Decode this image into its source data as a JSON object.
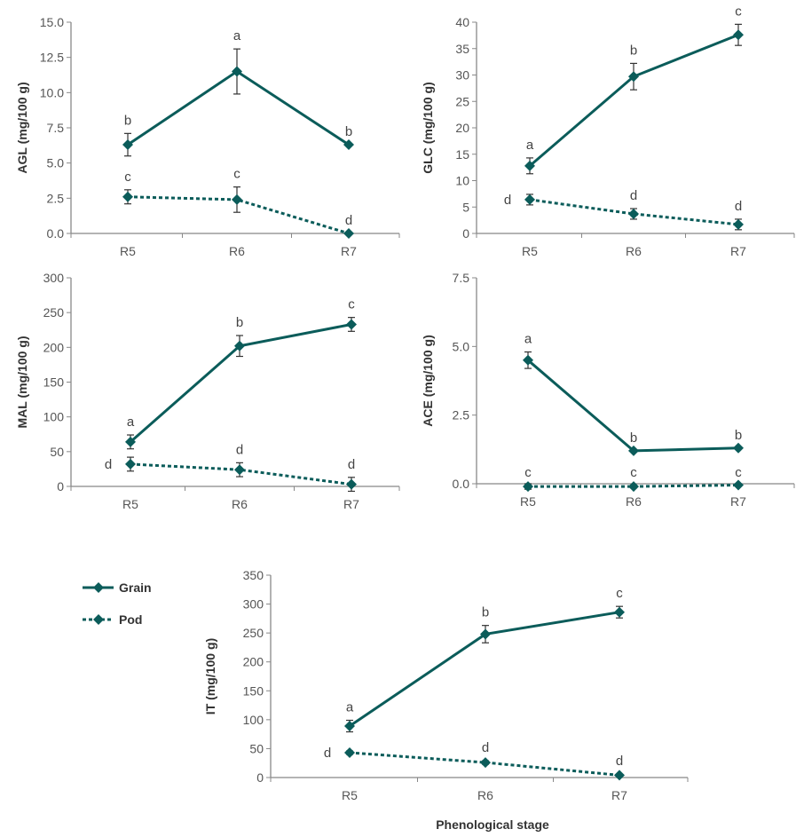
{
  "chart_data": [
    {
      "type": "line",
      "ylabel": "AGL (mg/100 g)",
      "categories": [
        "R5",
        "R6",
        "R7"
      ],
      "ylim": [
        0,
        15
      ],
      "yticks": [
        "0.0",
        "2.5",
        "5.0",
        "7.5",
        "10.0",
        "12.5",
        "15.0"
      ],
      "series": [
        {
          "name": "Grain",
          "values": [
            6.3,
            11.5,
            6.3
          ],
          "errors": [
            0.8,
            1.6,
            0
          ],
          "letters": [
            "b",
            "a",
            "b"
          ]
        },
        {
          "name": "Pod",
          "values": [
            2.6,
            2.4,
            0
          ],
          "errors": [
            0.5,
            0.9,
            0
          ],
          "letters": [
            "c",
            "c",
            "d"
          ]
        }
      ]
    },
    {
      "type": "line",
      "ylabel": "GLC (mg/100 g)",
      "categories": [
        "R5",
        "R6",
        "R7"
      ],
      "ylim": [
        0,
        40
      ],
      "yticks": [
        "0",
        "5",
        "10",
        "15",
        "20",
        "25",
        "30",
        "35",
        "40"
      ],
      "series": [
        {
          "name": "Grain",
          "values": [
            12.8,
            29.7,
            37.6
          ],
          "errors": [
            1.5,
            2.5,
            2.0
          ],
          "letters": [
            "a",
            "b",
            "c"
          ]
        },
        {
          "name": "Pod",
          "values": [
            6.4,
            3.7,
            1.7
          ],
          "errors": [
            1.0,
            1.0,
            1.0
          ],
          "letters": [
            "d",
            "d",
            "d"
          ]
        }
      ]
    },
    {
      "type": "line",
      "ylabel": "MAL (mg/100 g)",
      "categories": [
        "R5",
        "R6",
        "R7"
      ],
      "ylim": [
        0,
        300
      ],
      "yticks": [
        "0",
        "50",
        "100",
        "150",
        "200",
        "250",
        "300"
      ],
      "series": [
        {
          "name": "Grain",
          "values": [
            64,
            202,
            233
          ],
          "errors": [
            10,
            15,
            10
          ],
          "letters": [
            "a",
            "b",
            "c"
          ]
        },
        {
          "name": "Pod",
          "values": [
            32,
            24,
            3
          ],
          "errors": [
            10,
            10,
            10
          ],
          "letters": [
            "d",
            "d",
            "d"
          ]
        }
      ]
    },
    {
      "type": "line",
      "ylabel": "ACE (mg/100 g)",
      "categories": [
        "R5",
        "R6",
        "R7"
      ],
      "ylim": [
        0,
        7.5
      ],
      "yticks": [
        "0.0",
        "2.5",
        "5.0",
        "7.5"
      ],
      "series": [
        {
          "name": "Grain",
          "values": [
            4.5,
            1.2,
            1.3
          ],
          "errors": [
            0.3,
            0,
            0
          ],
          "letters": [
            "a",
            "b",
            "b"
          ]
        },
        {
          "name": "Pod",
          "values": [
            -0.1,
            -0.1,
            -0.05
          ],
          "errors": [
            0.1,
            0.05,
            0
          ],
          "letters": [
            "c",
            "c",
            "c"
          ]
        }
      ]
    },
    {
      "type": "line",
      "ylabel": "IT (mg/100 g)",
      "xlabel": "Phenological stage",
      "categories": [
        "R5",
        "R6",
        "R7"
      ],
      "ylim": [
        0,
        350
      ],
      "yticks": [
        "0",
        "50",
        "100",
        "150",
        "200",
        "250",
        "300",
        "350"
      ],
      "series": [
        {
          "name": "Grain",
          "values": [
            89,
            248,
            286
          ],
          "errors": [
            10,
            15,
            10
          ],
          "letters": [
            "a",
            "b",
            "c"
          ]
        },
        {
          "name": "Pod",
          "values": [
            43,
            26,
            4
          ],
          "errors": [
            3,
            3,
            2
          ],
          "letters": [
            "d",
            "d",
            "d"
          ]
        }
      ]
    }
  ],
  "legend": {
    "position": "left of bottom chart",
    "items": [
      {
        "label": "Grain",
        "style": "solid"
      },
      {
        "label": "Pod",
        "style": "dotted"
      }
    ]
  },
  "colors": {
    "series": "#0b5c5a",
    "axis": "#888888"
  }
}
